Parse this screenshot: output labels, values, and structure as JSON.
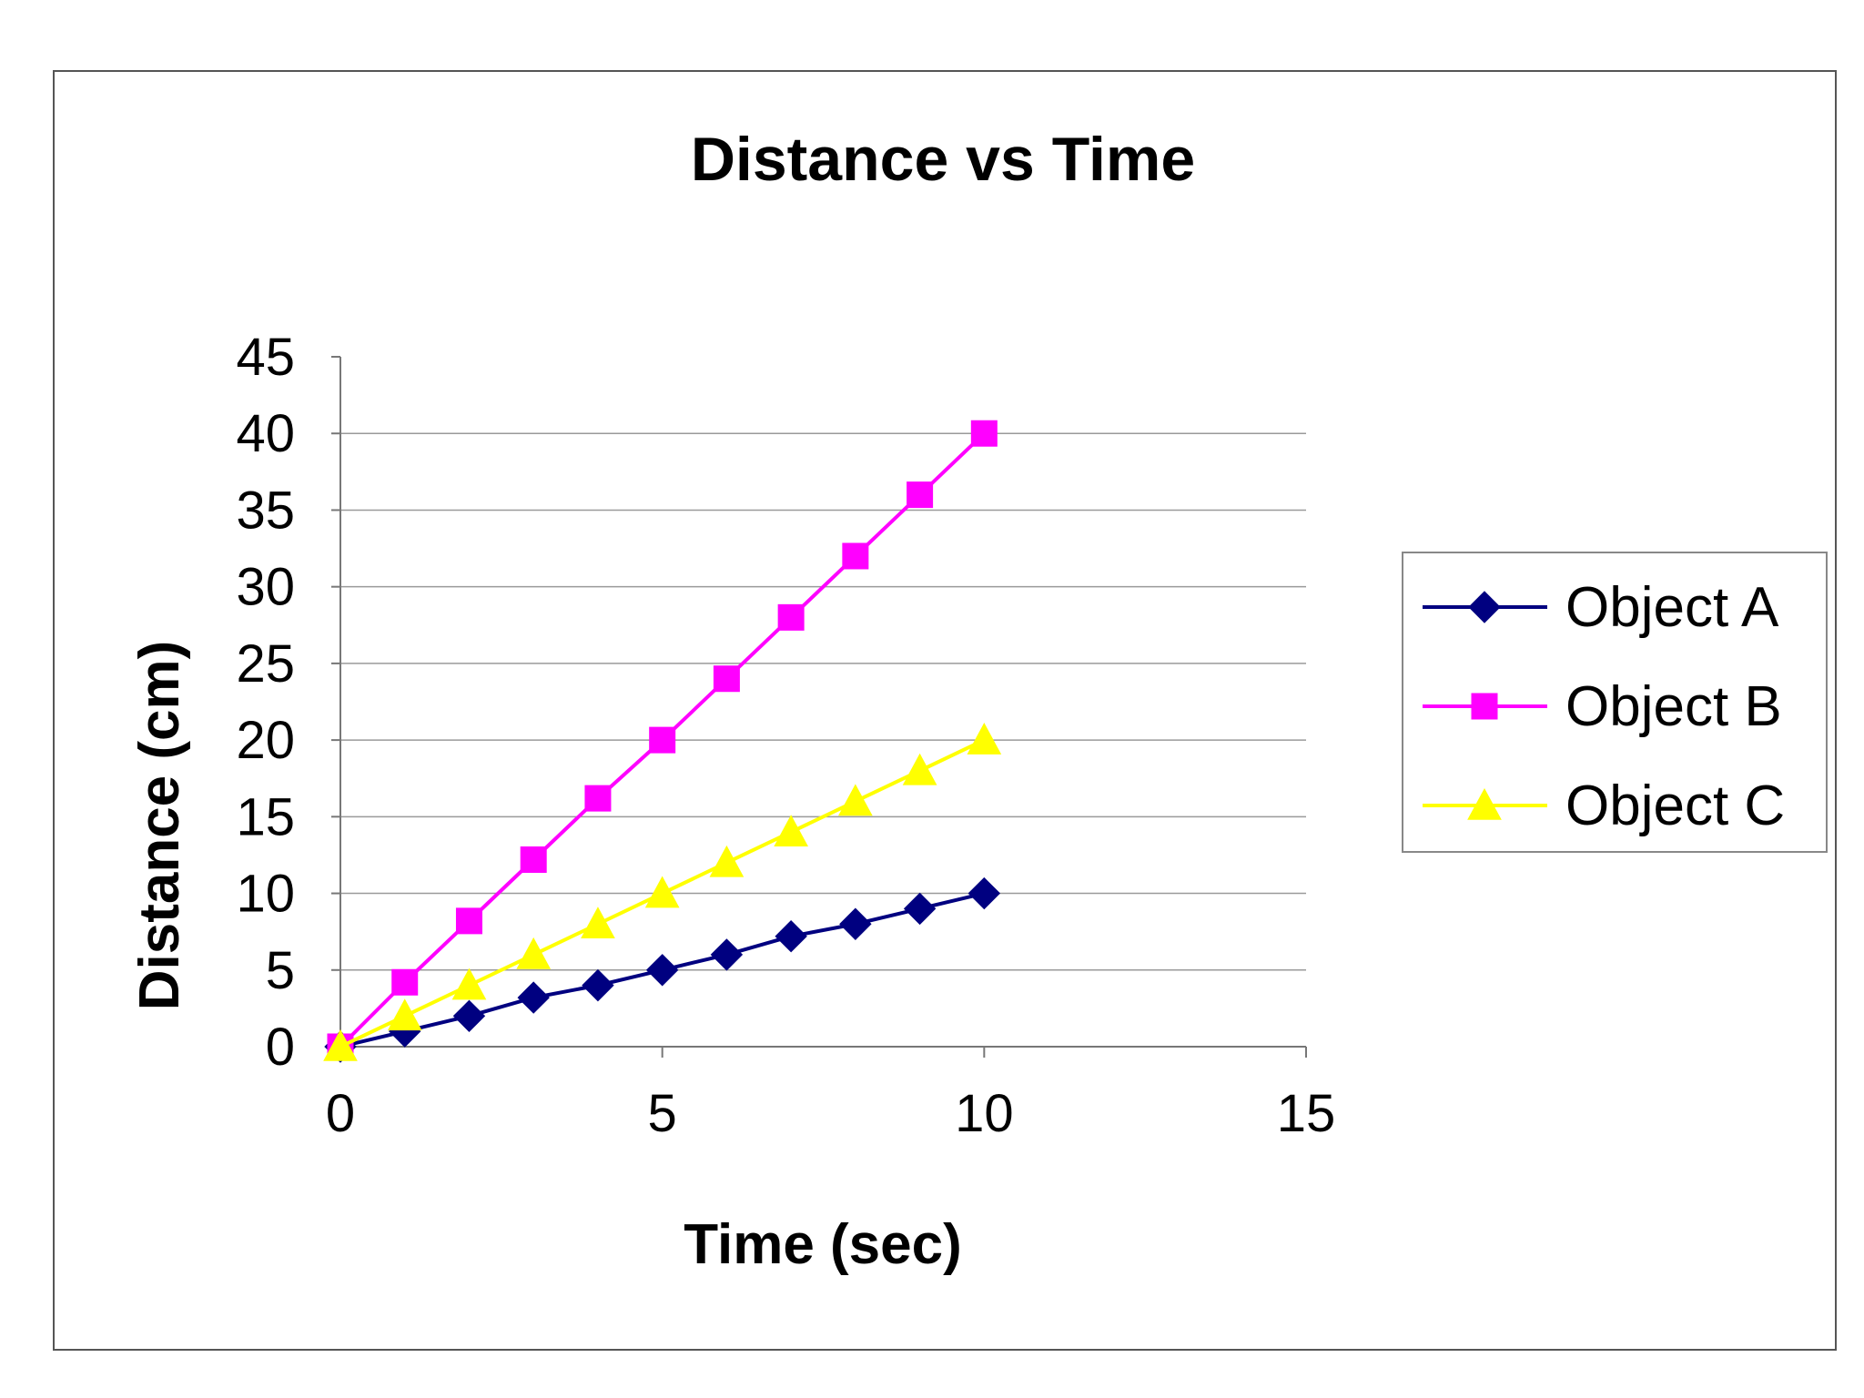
{
  "chart_data": {
    "type": "line",
    "title": "Distance vs Time",
    "xlabel": "Time (sec)",
    "ylabel": "Distance (cm)",
    "xlim": [
      0,
      15
    ],
    "ylim": [
      0,
      45
    ],
    "xticks": [
      "0",
      "5",
      "10",
      "15"
    ],
    "yticks": [
      "0",
      "5",
      "10",
      "15",
      "20",
      "25",
      "30",
      "35",
      "40",
      "45"
    ],
    "grid": "horizontal",
    "legend_position": "right",
    "x": [
      0,
      1,
      2,
      3,
      4,
      5,
      6,
      7,
      8,
      9,
      10
    ],
    "series": [
      {
        "name": "Object A",
        "marker": "diamond",
        "color": "#000080",
        "values": [
          0,
          1,
          2,
          3.2,
          4,
          5,
          6,
          7.2,
          8,
          9,
          10
        ]
      },
      {
        "name": "Object B",
        "marker": "square",
        "color": "#FF00FF",
        "values": [
          0,
          4.2,
          8.2,
          12.2,
          16.2,
          20,
          24,
          28,
          32,
          36,
          40
        ]
      },
      {
        "name": "Object C",
        "marker": "triangle",
        "color": "#FFFF00",
        "values": [
          0,
          2,
          4,
          6,
          8,
          10,
          12,
          14,
          16,
          18,
          20
        ]
      }
    ]
  }
}
